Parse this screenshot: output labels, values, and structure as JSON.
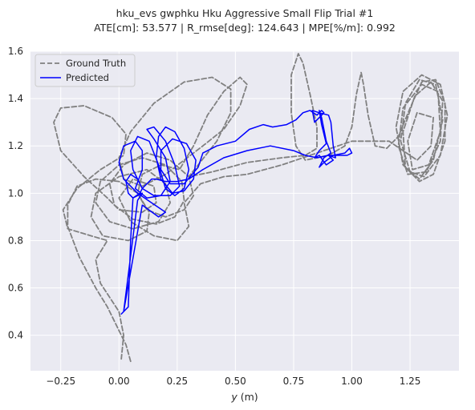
{
  "chart_data": {
    "type": "line",
    "title": "hku_evs gwphku Hku Aggressive Small Flip Trial #1",
    "subtitle": "ATE[cm]: 53.577 | R_rmse[deg]: 124.643 | MPE[%/m]: 0.992",
    "xlabel_prefix": "y",
    "xlabel_unit": " (m)",
    "ylabel": "",
    "xlim": [
      -0.38,
      1.46
    ],
    "ylim": [
      0.25,
      1.6
    ],
    "x_ticks": [
      -0.25,
      0.0,
      0.25,
      0.5,
      0.75,
      1.0,
      1.25
    ],
    "x_tick_labels": [
      "−0.25",
      "0.00",
      "0.25",
      "0.50",
      "0.75",
      "1.00",
      "1.25"
    ],
    "y_ticks": [
      0.4,
      0.6,
      0.8,
      1.0,
      1.2,
      1.4,
      1.6
    ],
    "y_tick_labels": [
      "0.4",
      "0.6",
      "0.8",
      "1.0",
      "1.2",
      "1.4",
      "1.6"
    ],
    "grid": true,
    "legend_position": "top-left",
    "background_color": "#eaeaf2",
    "series": [
      {
        "name": "Ground Truth",
        "color": "#808080",
        "style": "dashed",
        "points": [
          [
            0.05,
            0.29
          ],
          [
            0.03,
            0.36
          ],
          [
            0.0,
            0.42
          ],
          [
            -0.05,
            0.52
          ],
          [
            -0.1,
            0.6
          ],
          [
            -0.17,
            0.73
          ],
          [
            -0.22,
            0.86
          ],
          [
            -0.22,
            0.95
          ],
          [
            -0.18,
            1.03
          ],
          [
            -0.1,
            1.06
          ],
          [
            0.0,
            1.05
          ],
          [
            0.08,
            1.0
          ],
          [
            0.13,
            0.92
          ],
          [
            0.12,
            0.84
          ],
          [
            0.04,
            0.8
          ],
          [
            -0.07,
            0.82
          ],
          [
            -0.12,
            0.9
          ],
          [
            -0.1,
            1.0
          ],
          [
            0.0,
            1.07
          ],
          [
            0.12,
            1.1
          ],
          [
            0.2,
            1.04
          ],
          [
            0.22,
            0.96
          ],
          [
            0.17,
            0.88
          ],
          [
            0.06,
            0.85
          ],
          [
            -0.04,
            0.88
          ],
          [
            -0.1,
            0.96
          ],
          [
            -0.08,
            1.05
          ],
          [
            0.0,
            1.12
          ],
          [
            0.1,
            1.15
          ],
          [
            0.2,
            1.12
          ],
          [
            0.27,
            1.05
          ],
          [
            0.28,
            0.97
          ],
          [
            0.24,
            0.9
          ],
          [
            0.16,
            0.87
          ],
          [
            0.06,
            0.89
          ],
          [
            -0.02,
            0.95
          ],
          [
            -0.04,
            1.04
          ],
          [
            0.02,
            1.12
          ],
          [
            0.12,
            1.17
          ],
          [
            0.22,
            1.14
          ],
          [
            0.3,
            1.07
          ],
          [
            0.32,
            0.99
          ],
          [
            0.28,
            0.93
          ],
          [
            0.2,
            0.9
          ],
          [
            0.12,
            0.93
          ],
          [
            0.08,
            1.0
          ],
          [
            0.1,
            1.08
          ],
          [
            0.18,
            1.12
          ],
          [
            0.26,
            1.1
          ],
          [
            0.32,
            1.2
          ],
          [
            0.38,
            1.33
          ],
          [
            0.45,
            1.43
          ],
          [
            0.52,
            1.49
          ],
          [
            0.55,
            1.46
          ],
          [
            0.52,
            1.37
          ],
          [
            0.45,
            1.27
          ],
          [
            0.36,
            1.2
          ],
          [
            0.28,
            1.14
          ],
          [
            0.2,
            1.08
          ],
          [
            0.1,
            1.03
          ],
          [
            0.02,
            1.06
          ],
          [
            0.0,
            1.15
          ],
          [
            0.05,
            1.26
          ],
          [
            0.15,
            1.38
          ],
          [
            0.28,
            1.47
          ],
          [
            0.4,
            1.49
          ],
          [
            0.48,
            1.44
          ],
          [
            0.48,
            1.34
          ],
          [
            0.42,
            1.22
          ],
          [
            0.34,
            1.12
          ],
          [
            0.3,
            1.07
          ],
          [
            0.4,
            1.09
          ],
          [
            0.55,
            1.13
          ],
          [
            0.7,
            1.15
          ],
          [
            0.8,
            1.16
          ],
          [
            0.85,
            1.19
          ],
          [
            0.85,
            1.28
          ],
          [
            0.82,
            1.42
          ],
          [
            0.79,
            1.55
          ],
          [
            0.77,
            1.59
          ],
          [
            0.74,
            1.5
          ],
          [
            0.74,
            1.34
          ],
          [
            0.76,
            1.2
          ],
          [
            0.8,
            1.14
          ],
          [
            0.9,
            1.16
          ],
          [
            0.97,
            1.2
          ],
          [
            1.0,
            1.28
          ],
          [
            1.02,
            1.42
          ],
          [
            1.04,
            1.51
          ],
          [
            1.05,
            1.46
          ],
          [
            1.07,
            1.33
          ],
          [
            1.1,
            1.2
          ],
          [
            1.15,
            1.19
          ],
          [
            1.2,
            1.24
          ],
          [
            1.25,
            1.36
          ],
          [
            1.3,
            1.47
          ],
          [
            1.36,
            1.48
          ],
          [
            1.4,
            1.38
          ],
          [
            1.4,
            1.22
          ],
          [
            1.35,
            1.08
          ],
          [
            1.29,
            1.05
          ],
          [
            1.22,
            1.12
          ],
          [
            1.19,
            1.28
          ],
          [
            1.22,
            1.43
          ],
          [
            1.3,
            1.5
          ],
          [
            1.38,
            1.46
          ],
          [
            1.41,
            1.33
          ],
          [
            1.38,
            1.16
          ],
          [
            1.31,
            1.07
          ],
          [
            1.25,
            1.09
          ],
          [
            1.21,
            1.22
          ],
          [
            1.23,
            1.38
          ],
          [
            1.29,
            1.48
          ],
          [
            1.36,
            1.46
          ],
          [
            1.39,
            1.31
          ],
          [
            1.35,
            1.14
          ],
          [
            1.29,
            1.06
          ],
          [
            1.23,
            1.11
          ],
          [
            1.22,
            1.26
          ],
          [
            1.27,
            1.41
          ],
          [
            1.34,
            1.47
          ],
          [
            1.39,
            1.39
          ],
          [
            1.38,
            1.22
          ],
          [
            1.32,
            1.09
          ],
          [
            1.24,
            1.08
          ],
          [
            1.2,
            1.2
          ],
          [
            1.22,
            1.36
          ],
          [
            1.3,
            1.46
          ],
          [
            1.37,
            1.43
          ],
          [
            1.38,
            1.26
          ],
          [
            1.33,
            1.12
          ],
          [
            1.26,
            1.1
          ],
          [
            1.24,
            1.22
          ],
          [
            1.28,
            1.34
          ],
          [
            1.35,
            1.32
          ],
          [
            1.34,
            1.2
          ],
          [
            1.28,
            1.14
          ],
          [
            1.16,
            1.22
          ],
          [
            1.0,
            1.22
          ],
          [
            0.85,
            1.17
          ],
          [
            0.7,
            1.12
          ],
          [
            0.55,
            1.08
          ],
          [
            0.45,
            1.07
          ],
          [
            0.35,
            1.04
          ],
          [
            0.28,
            0.96
          ],
          [
            0.3,
            0.86
          ],
          [
            0.25,
            0.8
          ],
          [
            0.15,
            0.82
          ],
          [
            0.05,
            0.88
          ],
          [
            0.0,
            0.98
          ],
          [
            0.06,
            1.06
          ],
          [
            0.15,
            1.03
          ],
          [
            0.16,
            0.96
          ],
          [
            0.1,
            0.92
          ],
          [
            0.0,
            0.93
          ],
          [
            -0.05,
            0.98
          ],
          [
            -0.15,
            1.07
          ],
          [
            -0.25,
            1.18
          ],
          [
            -0.28,
            1.3
          ],
          [
            -0.25,
            1.36
          ],
          [
            -0.15,
            1.37
          ],
          [
            -0.03,
            1.32
          ],
          [
            0.03,
            1.25
          ],
          [
            0.02,
            1.16
          ],
          [
            -0.08,
            1.1
          ],
          [
            -0.18,
            1.02
          ],
          [
            -0.24,
            0.93
          ],
          [
            -0.22,
            0.85
          ],
          [
            -0.12,
            0.82
          ],
          [
            -0.05,
            0.8
          ],
          [
            -0.1,
            0.72
          ],
          [
            -0.08,
            0.62
          ],
          [
            0.0,
            0.5
          ],
          [
            0.02,
            0.4
          ],
          [
            0.01,
            0.3
          ]
        ]
      },
      {
        "name": "Predicted",
        "color": "#0000ff",
        "style": "solid",
        "points": [
          [
            0.01,
            0.49
          ],
          [
            0.04,
            0.52
          ],
          [
            0.05,
            0.8
          ],
          [
            0.06,
            0.98
          ],
          [
            0.1,
            1.0
          ],
          [
            0.08,
            0.97
          ],
          [
            0.02,
            0.5
          ],
          [
            0.1,
            0.95
          ],
          [
            0.17,
            0.9
          ],
          [
            0.2,
            0.92
          ],
          [
            0.14,
            0.96
          ],
          [
            0.08,
            1.0
          ],
          [
            0.02,
            1.06
          ],
          [
            0.0,
            1.13
          ],
          [
            0.02,
            1.2
          ],
          [
            0.07,
            1.22
          ],
          [
            0.1,
            1.18
          ],
          [
            0.1,
            1.1
          ],
          [
            0.07,
            1.02
          ],
          [
            0.12,
            0.98
          ],
          [
            0.18,
            0.99
          ],
          [
            0.22,
            1.05
          ],
          [
            0.2,
            1.15
          ],
          [
            0.15,
            1.23
          ],
          [
            0.12,
            1.27
          ],
          [
            0.15,
            1.28
          ],
          [
            0.2,
            1.22
          ],
          [
            0.24,
            1.12
          ],
          [
            0.26,
            1.03
          ],
          [
            0.22,
            0.99
          ],
          [
            0.15,
            0.99
          ],
          [
            0.1,
            1.02
          ],
          [
            0.06,
            1.1
          ],
          [
            0.05,
            1.18
          ],
          [
            0.08,
            1.24
          ],
          [
            0.13,
            1.22
          ],
          [
            0.17,
            1.12
          ],
          [
            0.2,
            1.02
          ],
          [
            0.24,
            0.99
          ],
          [
            0.28,
            1.02
          ],
          [
            0.3,
            1.1
          ],
          [
            0.28,
            1.19
          ],
          [
            0.24,
            1.26
          ],
          [
            0.2,
            1.28
          ],
          [
            0.17,
            1.24
          ],
          [
            0.16,
            1.15
          ],
          [
            0.18,
            1.06
          ],
          [
            0.23,
            1.0
          ],
          [
            0.28,
            1.01
          ],
          [
            0.32,
            1.06
          ],
          [
            0.33,
            1.14
          ],
          [
            0.29,
            1.21
          ],
          [
            0.23,
            1.23
          ],
          [
            0.18,
            1.18
          ],
          [
            0.18,
            1.1
          ],
          [
            0.22,
            1.04
          ],
          [
            0.28,
            1.04
          ],
          [
            0.34,
            1.11
          ],
          [
            0.36,
            1.17
          ],
          [
            0.42,
            1.2
          ],
          [
            0.5,
            1.22
          ],
          [
            0.56,
            1.27
          ],
          [
            0.62,
            1.29
          ],
          [
            0.66,
            1.28
          ],
          [
            0.72,
            1.29
          ],
          [
            0.76,
            1.31
          ],
          [
            0.79,
            1.34
          ],
          [
            0.82,
            1.35
          ],
          [
            0.85,
            1.33
          ],
          [
            0.87,
            1.35
          ],
          [
            0.88,
            1.34
          ],
          [
            0.86,
            1.32
          ],
          [
            0.84,
            1.3
          ],
          [
            0.83,
            1.35
          ],
          [
            0.86,
            1.34
          ],
          [
            0.9,
            1.33
          ],
          [
            0.91,
            1.3
          ],
          [
            0.92,
            1.2
          ],
          [
            0.93,
            1.15
          ],
          [
            0.9,
            1.16
          ],
          [
            0.92,
            1.14
          ],
          [
            0.89,
            1.12
          ],
          [
            0.86,
            1.16
          ],
          [
            0.84,
            1.15
          ],
          [
            0.86,
            1.18
          ],
          [
            0.89,
            1.21
          ],
          [
            0.87,
            1.29
          ],
          [
            0.86,
            1.35
          ],
          [
            0.87,
            1.32
          ],
          [
            0.89,
            1.22
          ],
          [
            0.91,
            1.17
          ],
          [
            0.88,
            1.15
          ],
          [
            0.86,
            1.11
          ],
          [
            0.88,
            1.13
          ],
          [
            0.92,
            1.16
          ],
          [
            0.97,
            1.17
          ],
          [
            0.99,
            1.19
          ],
          [
            1.0,
            1.17
          ],
          [
            0.98,
            1.16
          ],
          [
            0.95,
            1.16
          ],
          [
            0.9,
            1.16
          ],
          [
            0.85,
            1.15
          ],
          [
            0.8,
            1.16
          ],
          [
            0.75,
            1.18
          ],
          [
            0.65,
            1.2
          ],
          [
            0.55,
            1.18
          ],
          [
            0.45,
            1.15
          ],
          [
            0.36,
            1.1
          ],
          [
            0.3,
            1.06
          ],
          [
            0.25,
            1.05
          ],
          [
            0.2,
            1.05
          ],
          [
            0.16,
            1.06
          ],
          [
            0.14,
            1.06
          ],
          [
            0.1,
            1.02
          ],
          [
            0.08,
            1.06
          ],
          [
            0.05,
            1.08
          ],
          [
            0.03,
            1.05
          ],
          [
            0.04,
            1.0
          ],
          [
            0.06,
            0.98
          ],
          [
            0.09,
            1.0
          ],
          [
            0.1,
            1.02
          ],
          [
            0.07,
            1.08
          ]
        ]
      }
    ]
  }
}
